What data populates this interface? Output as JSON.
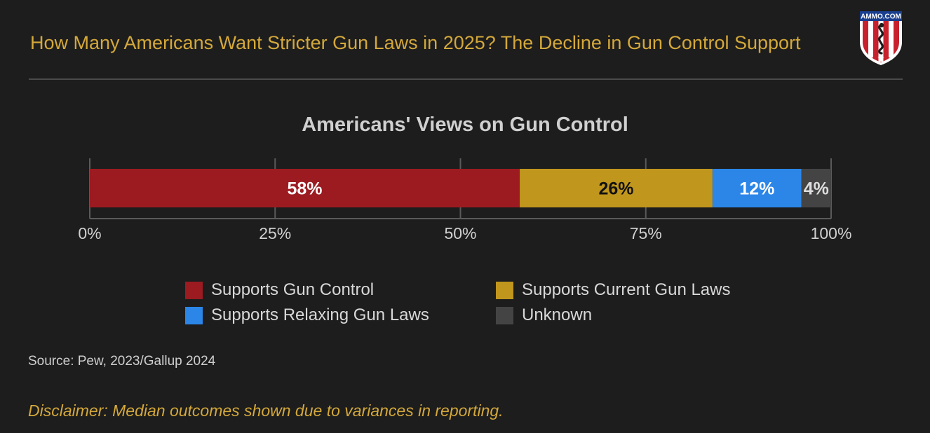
{
  "header": {
    "title": "How Many Americans Want Stricter Gun Laws in 2025? The Decline in Gun Control Support",
    "logo_text": "AMMO.COM"
  },
  "chart_data": {
    "type": "bar",
    "orientation": "horizontal",
    "stacked": true,
    "title": "Americans' Views on Gun Control",
    "categories": [
      ""
    ],
    "series": [
      {
        "name": "Supports Gun Control",
        "values": [
          58
        ],
        "label": "58%",
        "color": "#9b1b21",
        "label_color": "#ffffff"
      },
      {
        "name": "Supports Current Gun Laws",
        "values": [
          26
        ],
        "label": "26%",
        "color": "#c1961c",
        "label_color": "#111111"
      },
      {
        "name": "Supports Relaxing Gun Laws",
        "values": [
          12
        ],
        "label": "12%",
        "color": "#2b86e8",
        "label_color": "#ffffff"
      },
      {
        "name": "Unknown",
        "values": [
          4
        ],
        "label": "4%",
        "color": "#444444",
        "label_color": "#dddddd"
      }
    ],
    "xlim": [
      0,
      100
    ],
    "xticks": [
      0,
      25,
      50,
      75,
      100
    ],
    "xtick_labels": [
      "0%",
      "25%",
      "50%",
      "75%",
      "100%"
    ],
    "grid": true,
    "legend_position": "bottom"
  },
  "legend": {
    "order": [
      0,
      2,
      1,
      3
    ]
  },
  "footer": {
    "source": "Source: Pew, 2023/Gallup 2024",
    "disclaimer": "Disclaimer: Median outcomes shown due to variances in reporting."
  },
  "colors": {
    "background": "#1d1d1d",
    "accent": "#d4a83a",
    "axis": "#5a5a5a"
  }
}
